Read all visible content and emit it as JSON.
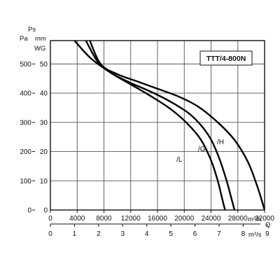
{
  "chart_data": {
    "type": "line",
    "title": "TTT/4-800N",
    "x_axis_primary": {
      "unit": "m³/h",
      "range": [
        0,
        32000
      ],
      "ticks": [
        0,
        4000,
        8000,
        12000,
        16000,
        20000,
        24000,
        28000,
        32000
      ],
      "tick_labels": [
        "0",
        "4000",
        "8000",
        "12000",
        "16000",
        "20000",
        "24000",
        "28000",
        "32000"
      ]
    },
    "x_axis_secondary": {
      "unit": "m³/s",
      "label": "Q",
      "range": [
        0,
        9
      ],
      "ticks": [
        0,
        1,
        2,
        3,
        4,
        5,
        6,
        7,
        8,
        9
      ],
      "tick_labels": [
        "0",
        "1",
        "2",
        "3",
        "4",
        "5",
        "6",
        "7",
        "8",
        "9"
      ]
    },
    "y_axis_left": {
      "label": "Ps",
      "unit": "Pa",
      "range": [
        0,
        580
      ],
      "ticks": [
        0,
        100,
        200,
        300,
        400,
        500
      ],
      "tick_labels": [
        "0",
        "100",
        "200",
        "300",
        "400",
        "500"
      ]
    },
    "y_axis_right": {
      "unit": "mm WG",
      "unit_lines": [
        "mm",
        "WG"
      ],
      "ticks": [
        0,
        10,
        20,
        30,
        40,
        50
      ],
      "tick_labels": [
        "0",
        "10",
        "20",
        "30",
        "40",
        "50"
      ]
    },
    "grid": true,
    "series": [
      {
        "name": "/L",
        "x": [
          3400,
          6000,
          9000,
          12000,
          15000,
          18000,
          20500,
          22500,
          24000,
          25000,
          25700,
          26100
        ],
        "y": [
          585,
          520,
          470,
          430,
          390,
          345,
          295,
          240,
          170,
          100,
          35,
          0
        ]
      },
      {
        "name": "/G",
        "x": [
          5200,
          7000,
          9000,
          12000,
          15000,
          18000,
          21000,
          23500,
          25000,
          26200,
          27100,
          27500
        ],
        "y": [
          585,
          510,
          470,
          435,
          405,
          370,
          325,
          260,
          190,
          110,
          35,
          0
        ]
      },
      {
        "name": "/H",
        "x": [
          5800,
          7500,
          10000,
          13000,
          16000,
          19000,
          22000,
          25000,
          27500,
          29500,
          31000,
          32000
        ],
        "y": [
          585,
          500,
          465,
          440,
          415,
          390,
          355,
          300,
          240,
          165,
          75,
          0
        ]
      }
    ]
  }
}
